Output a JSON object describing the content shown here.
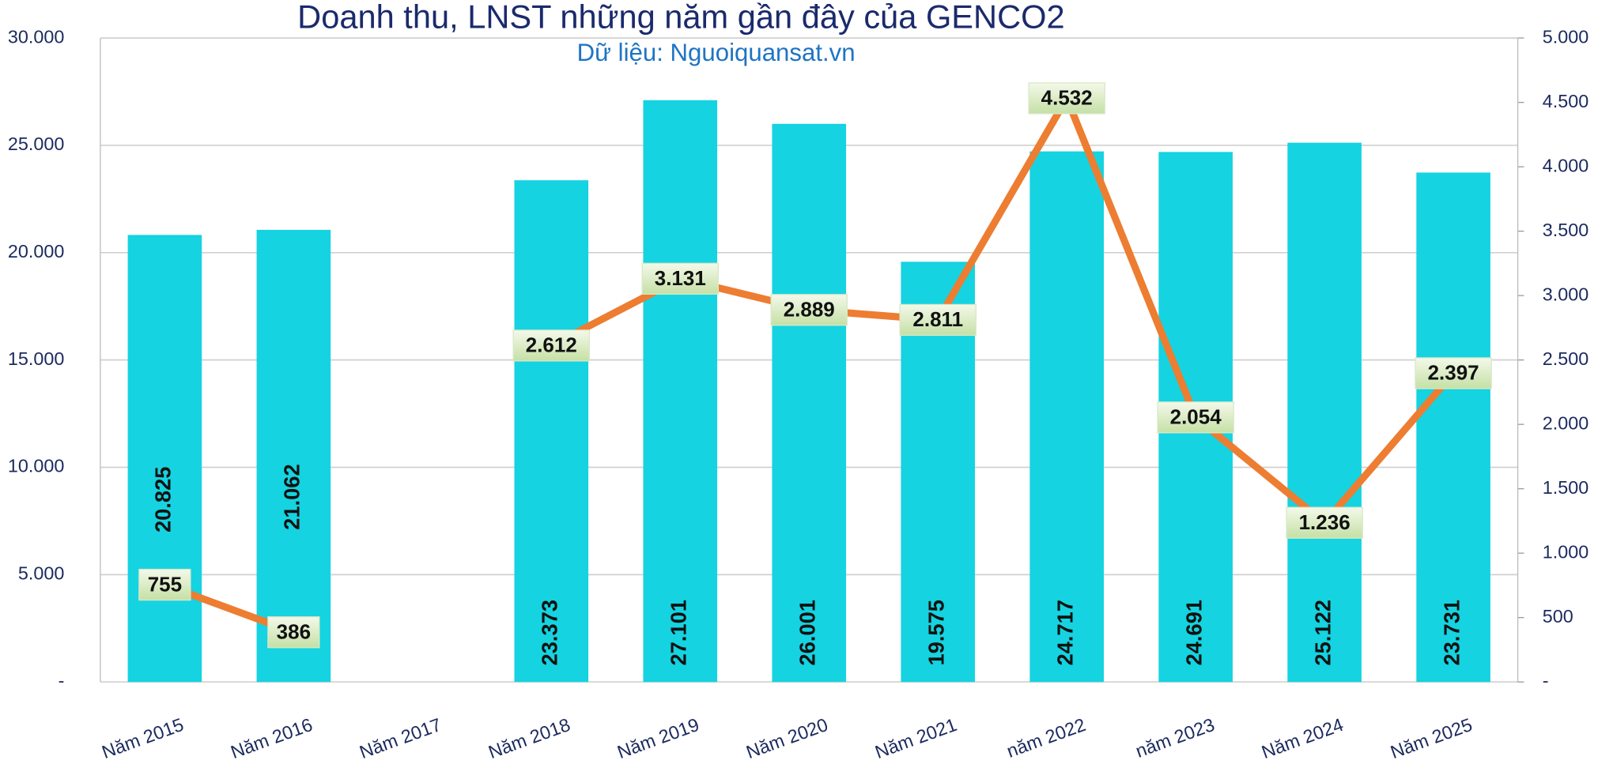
{
  "chart_data": {
    "type": "bar-line",
    "title": "Doanh thu, LNST những năm gần đây của GENCO2",
    "subtitle": "Dữ liệu: Nguoiquansat.vn",
    "categories": [
      "Năm 2015",
      "Năm 2016",
      "Năm 2017",
      "Năm 2018",
      "Năm 2019",
      "Năm 2020",
      "Năm 2021",
      "năm 2022",
      "năm 2023",
      "Năm 2024",
      "Năm 2025"
    ],
    "series": [
      {
        "type": "bar",
        "color": "#15d3e0",
        "values": [
          20825,
          21062,
          null,
          23373,
          27101,
          26001,
          19575,
          24717,
          24691,
          25122,
          23731
        ],
        "value_labels": [
          "20.825",
          "21.062",
          null,
          "23.373",
          "27.101",
          "26.001",
          "19.575",
          "24.717",
          "24.691",
          "25.122",
          "23.731"
        ]
      },
      {
        "type": "line",
        "axis": "y2",
        "color": "#ed7d31",
        "values": [
          755,
          386,
          null,
          2612,
          3131,
          2889,
          2811,
          4532,
          2054,
          1236,
          2397
        ],
        "value_labels": [
          "755",
          "386",
          null,
          "2.612",
          "3.131",
          "2.889",
          "2.811",
          "4.532",
          "2.054",
          "1.236",
          "2.397"
        ]
      }
    ],
    "ylim": [
      0,
      30000
    ],
    "yticks": [
      {
        "value": 0,
        "label": "-"
      },
      {
        "value": 5000,
        "label": "5.000"
      },
      {
        "value": 10000,
        "label": "10.000"
      },
      {
        "value": 15000,
        "label": "15.000"
      },
      {
        "value": 20000,
        "label": "20.000"
      },
      {
        "value": 25000,
        "label": "25.000"
      },
      {
        "value": 30000,
        "label": "30.000"
      }
    ],
    "y2lim": [
      0,
      5000
    ],
    "y2ticks": [
      {
        "value": 0,
        "label": "-"
      },
      500,
      {
        "value": 1000,
        "label": "1.000"
      },
      {
        "value": 1500,
        "label": "1.500"
      },
      {
        "value": 2000,
        "label": "2.000"
      },
      {
        "value": 2500,
        "label": "2.500"
      },
      {
        "value": 3000,
        "label": "3.000"
      },
      {
        "value": 3500,
        "label": "3.500"
      },
      {
        "value": 4000,
        "label": "4.000"
      },
      {
        "value": 4500,
        "label": "4.500"
      },
      {
        "value": 5000,
        "label": "5.000"
      }
    ],
    "grid": true
  }
}
